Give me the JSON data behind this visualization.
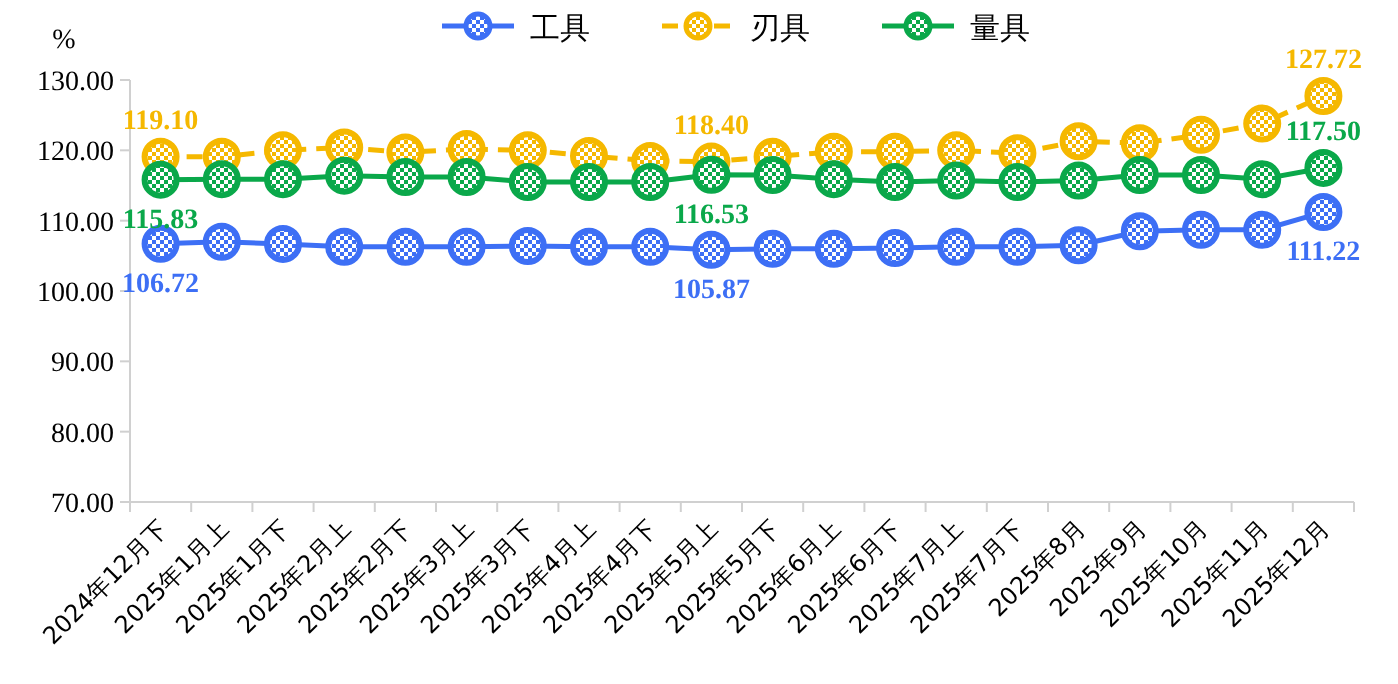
{
  "chart_data": {
    "type": "line",
    "ylabel": "%",
    "legend": "top",
    "marker": "circle",
    "categories": [
      "2024年12月下",
      "2025年1月上",
      "2025年1月下",
      "2025年2月上",
      "2025年2月下",
      "2025年3月上",
      "2025年3月下",
      "2025年4月上",
      "2025年4月下",
      "2025年5月上",
      "2025年5月下",
      "2025年6月上",
      "2025年6月下",
      "2025年7月上",
      "2025年7月下",
      "2025年8月",
      "2025年9月",
      "2025年10月",
      "2025年11月",
      "2025年12月"
    ],
    "ylim": [
      70,
      130
    ],
    "yticks": [
      {
        "value": 70,
        "label": "70.00"
      },
      {
        "value": 80,
        "label": "80.00"
      },
      {
        "value": 90,
        "label": "90.00"
      },
      {
        "value": 100,
        "label": "100.00"
      },
      {
        "value": 110,
        "label": "110.00"
      },
      {
        "value": 120,
        "label": "120.00"
      },
      {
        "value": 130,
        "label": "130.00"
      }
    ],
    "series": [
      {
        "name": "工具",
        "color": "#3d6ff5",
        "line_style": "solid",
        "values": [
          106.72,
          107.0,
          106.7,
          106.3,
          106.3,
          106.3,
          106.4,
          106.3,
          106.3,
          105.87,
          106.0,
          106.0,
          106.1,
          106.3,
          106.3,
          106.5,
          108.5,
          108.7,
          108.7,
          111.22
        ],
        "value_labels": [
          "106.72",
          null,
          null,
          null,
          null,
          null,
          null,
          null,
          null,
          "105.87",
          null,
          null,
          null,
          null,
          null,
          null,
          null,
          null,
          null,
          "111.22"
        ]
      },
      {
        "name": "刃具",
        "color": "#f5b800",
        "line_style": "dashed",
        "values": [
          119.1,
          119.1,
          120.0,
          120.4,
          119.7,
          120.2,
          120.0,
          119.2,
          118.5,
          118.4,
          119.1,
          119.8,
          119.8,
          120.0,
          119.6,
          121.3,
          121.0,
          122.2,
          123.8,
          127.72
        ],
        "value_labels": [
          "119.10",
          null,
          null,
          null,
          null,
          null,
          null,
          null,
          null,
          "118.40",
          null,
          null,
          null,
          null,
          null,
          null,
          null,
          null,
          null,
          "127.72"
        ]
      },
      {
        "name": "量具",
        "color": "#0aa84a",
        "line_style": "solid",
        "values": [
          115.83,
          115.9,
          115.9,
          116.4,
          116.2,
          116.2,
          115.5,
          115.5,
          115.5,
          116.53,
          116.5,
          115.9,
          115.5,
          115.7,
          115.5,
          115.7,
          116.5,
          116.5,
          115.9,
          117.5
        ],
        "value_labels": [
          "115.83",
          null,
          null,
          null,
          null,
          null,
          null,
          null,
          null,
          "116.53",
          null,
          null,
          null,
          null,
          null,
          null,
          null,
          null,
          null,
          "117.50"
        ]
      }
    ]
  }
}
